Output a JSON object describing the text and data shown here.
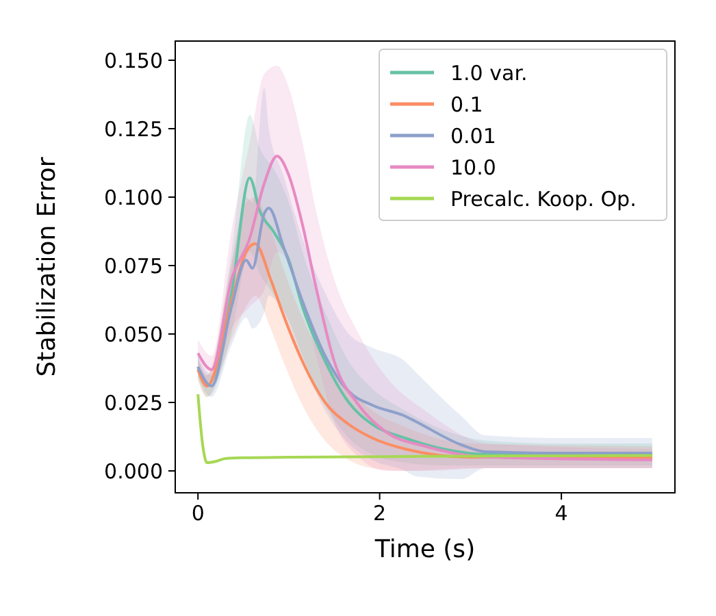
{
  "chart_data": {
    "type": "line",
    "xlabel": "Time (s)",
    "ylabel": "Stabilization Error",
    "xlim": [
      -0.25,
      5.25
    ],
    "ylim": [
      -0.008,
      0.157
    ],
    "xticks": [
      0,
      2,
      4
    ],
    "yticks": [
      {
        "value": 0,
        "label": "0.000"
      },
      {
        "value": 0.025,
        "label": "0.025"
      },
      {
        "value": 0.05,
        "label": "0.050"
      },
      {
        "value": 0.075,
        "label": "0.075"
      },
      {
        "value": 0.1,
        "label": "0.100"
      },
      {
        "value": 0.125,
        "label": "0.125"
      },
      {
        "value": 0.15,
        "label": "0.150"
      }
    ],
    "legend": "top right",
    "grid": false,
    "series": [
      {
        "name": "1.0 var.",
        "color": "#66c2a5",
        "x": [
          0,
          0.1,
          0.37,
          0.57,
          0.68,
          0.84,
          1.0,
          1.15,
          1.4,
          1.66,
          1.92,
          2.28,
          2.7,
          3.2,
          4,
          5
        ],
        "values": [
          0.038,
          0.031,
          0.065,
          0.107,
          0.095,
          0.087,
          0.077,
          0.06,
          0.04,
          0.025,
          0.017,
          0.012,
          0.008,
          0.006,
          0.006,
          0.006
        ],
        "upper": [
          0.042,
          0.035,
          0.08,
          0.13,
          0.118,
          0.11,
          0.098,
          0.08,
          0.058,
          0.04,
          0.03,
          0.022,
          0.015,
          0.011,
          0.01,
          0.01
        ],
        "lower": [
          0.034,
          0.027,
          0.05,
          0.08,
          0.072,
          0.064,
          0.055,
          0.042,
          0.024,
          0.012,
          0.006,
          0.003,
          0.002,
          0.002,
          0.002,
          0.002
        ]
      },
      {
        "name": "0.1",
        "color": "#fc8d62",
        "x": [
          0,
          0.1,
          0.37,
          0.53,
          0.63,
          0.8,
          0.94,
          1.15,
          1.4,
          1.66,
          1.92,
          2.28,
          3,
          5
        ],
        "values": [
          0.037,
          0.031,
          0.062,
          0.08,
          0.083,
          0.07,
          0.057,
          0.04,
          0.025,
          0.017,
          0.012,
          0.008,
          0.005,
          0.005
        ],
        "upper": [
          0.041,
          0.035,
          0.076,
          0.098,
          0.1,
          0.088,
          0.074,
          0.056,
          0.04,
          0.03,
          0.022,
          0.016,
          0.01,
          0.009
        ],
        "lower": [
          0.033,
          0.027,
          0.048,
          0.06,
          0.064,
          0.052,
          0.04,
          0.024,
          0.011,
          0.004,
          0.001,
          0.0,
          0.001,
          0.001
        ]
      },
      {
        "name": "0.01",
        "color": "#8da0cb",
        "x": [
          0,
          0.15,
          0.37,
          0.53,
          0.6,
          0.73,
          0.78,
          0.94,
          1.15,
          1.4,
          1.66,
          1.92,
          2.28,
          2.4,
          2.9,
          3.16,
          4,
          5
        ],
        "values": [
          0.038,
          0.031,
          0.06,
          0.077,
          0.074,
          0.094,
          0.096,
          0.082,
          0.062,
          0.042,
          0.029,
          0.024,
          0.02,
          0.018,
          0.0095,
          0.007,
          0.0065,
          0.0065
        ],
        "upper": [
          0.042,
          0.035,
          0.075,
          0.1,
          0.098,
          0.14,
          0.125,
          0.108,
          0.085,
          0.065,
          0.05,
          0.045,
          0.04,
          0.036,
          0.02,
          0.013,
          0.012,
          0.012
        ],
        "lower": [
          0.034,
          0.027,
          0.046,
          0.056,
          0.052,
          0.058,
          0.064,
          0.058,
          0.04,
          0.022,
          0.01,
          0.004,
          0.0,
          -0.002,
          -0.003,
          0.001,
          0.001,
          0.001
        ]
      },
      {
        "name": "10.0",
        "color": "#e78ac3",
        "x": [
          0,
          0.15,
          0.37,
          0.57,
          0.73,
          0.87,
          1.0,
          1.15,
          1.3,
          1.5,
          1.77,
          2.08,
          2.5,
          3.2,
          5
        ],
        "values": [
          0.043,
          0.037,
          0.07,
          0.085,
          0.105,
          0.115,
          0.108,
          0.09,
          0.067,
          0.04,
          0.024,
          0.014,
          0.009,
          0.005,
          0.004
        ],
        "upper": [
          0.048,
          0.042,
          0.088,
          0.12,
          0.145,
          0.148,
          0.14,
          0.12,
          0.095,
          0.07,
          0.05,
          0.034,
          0.022,
          0.01,
          0.008
        ],
        "lower": [
          0.038,
          0.032,
          0.052,
          0.06,
          0.066,
          0.08,
          0.076,
          0.062,
          0.042,
          0.018,
          0.005,
          0.0,
          0.0,
          0.001,
          0.001
        ]
      },
      {
        "name": "Precalc. Koop. Op.",
        "color": "#a6d854",
        "x": [
          0,
          0.05,
          0.1,
          0.2,
          0.3,
          0.5,
          1,
          2,
          3,
          5
        ],
        "values": [
          0.028,
          0.01,
          0.003,
          0.0035,
          0.0045,
          0.0048,
          0.005,
          0.0052,
          0.0054,
          0.0056
        ]
      }
    ]
  }
}
